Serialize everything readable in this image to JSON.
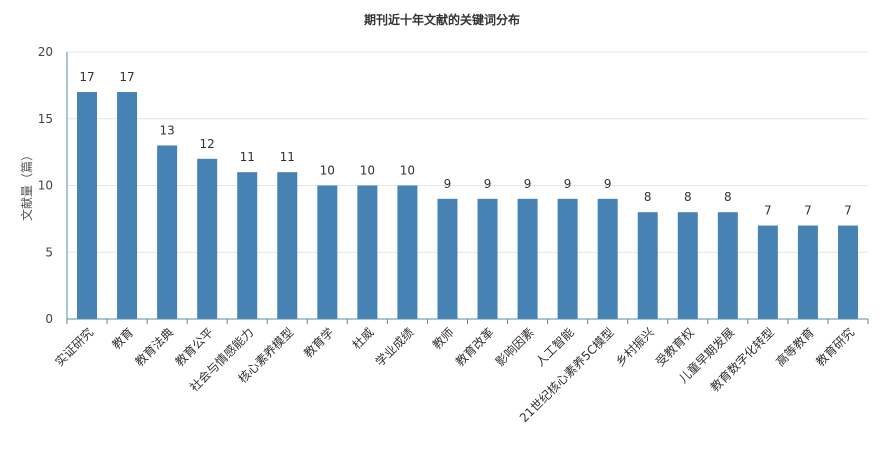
{
  "chart_data": {
    "type": "bar",
    "title": "期刊近十年文献的关键词分布",
    "ylabel": "文献量（篇）",
    "xlabel": "",
    "ylim": [
      0,
      20
    ],
    "yticks": [
      0,
      5,
      10,
      15,
      20
    ],
    "grid": true,
    "bar_color": "#4682b4",
    "categories": [
      "实证研究",
      "教育",
      "教育法典",
      "教育公平",
      "社会与情感能力",
      "核心素养模型",
      "教育学",
      "杜威",
      "学业成绩",
      "教师",
      "教育改革",
      "影响因素",
      "人工智能",
      "21世纪核心素养5C模型",
      "乡村振兴",
      "受教育权",
      "儿童早期发展",
      "教育数字化转型",
      "高等教育",
      "教育研究"
    ],
    "values": [
      17,
      17,
      13,
      12,
      11,
      11,
      10,
      10,
      10,
      9,
      9,
      9,
      9,
      9,
      8,
      8,
      8,
      7,
      7,
      7
    ]
  }
}
